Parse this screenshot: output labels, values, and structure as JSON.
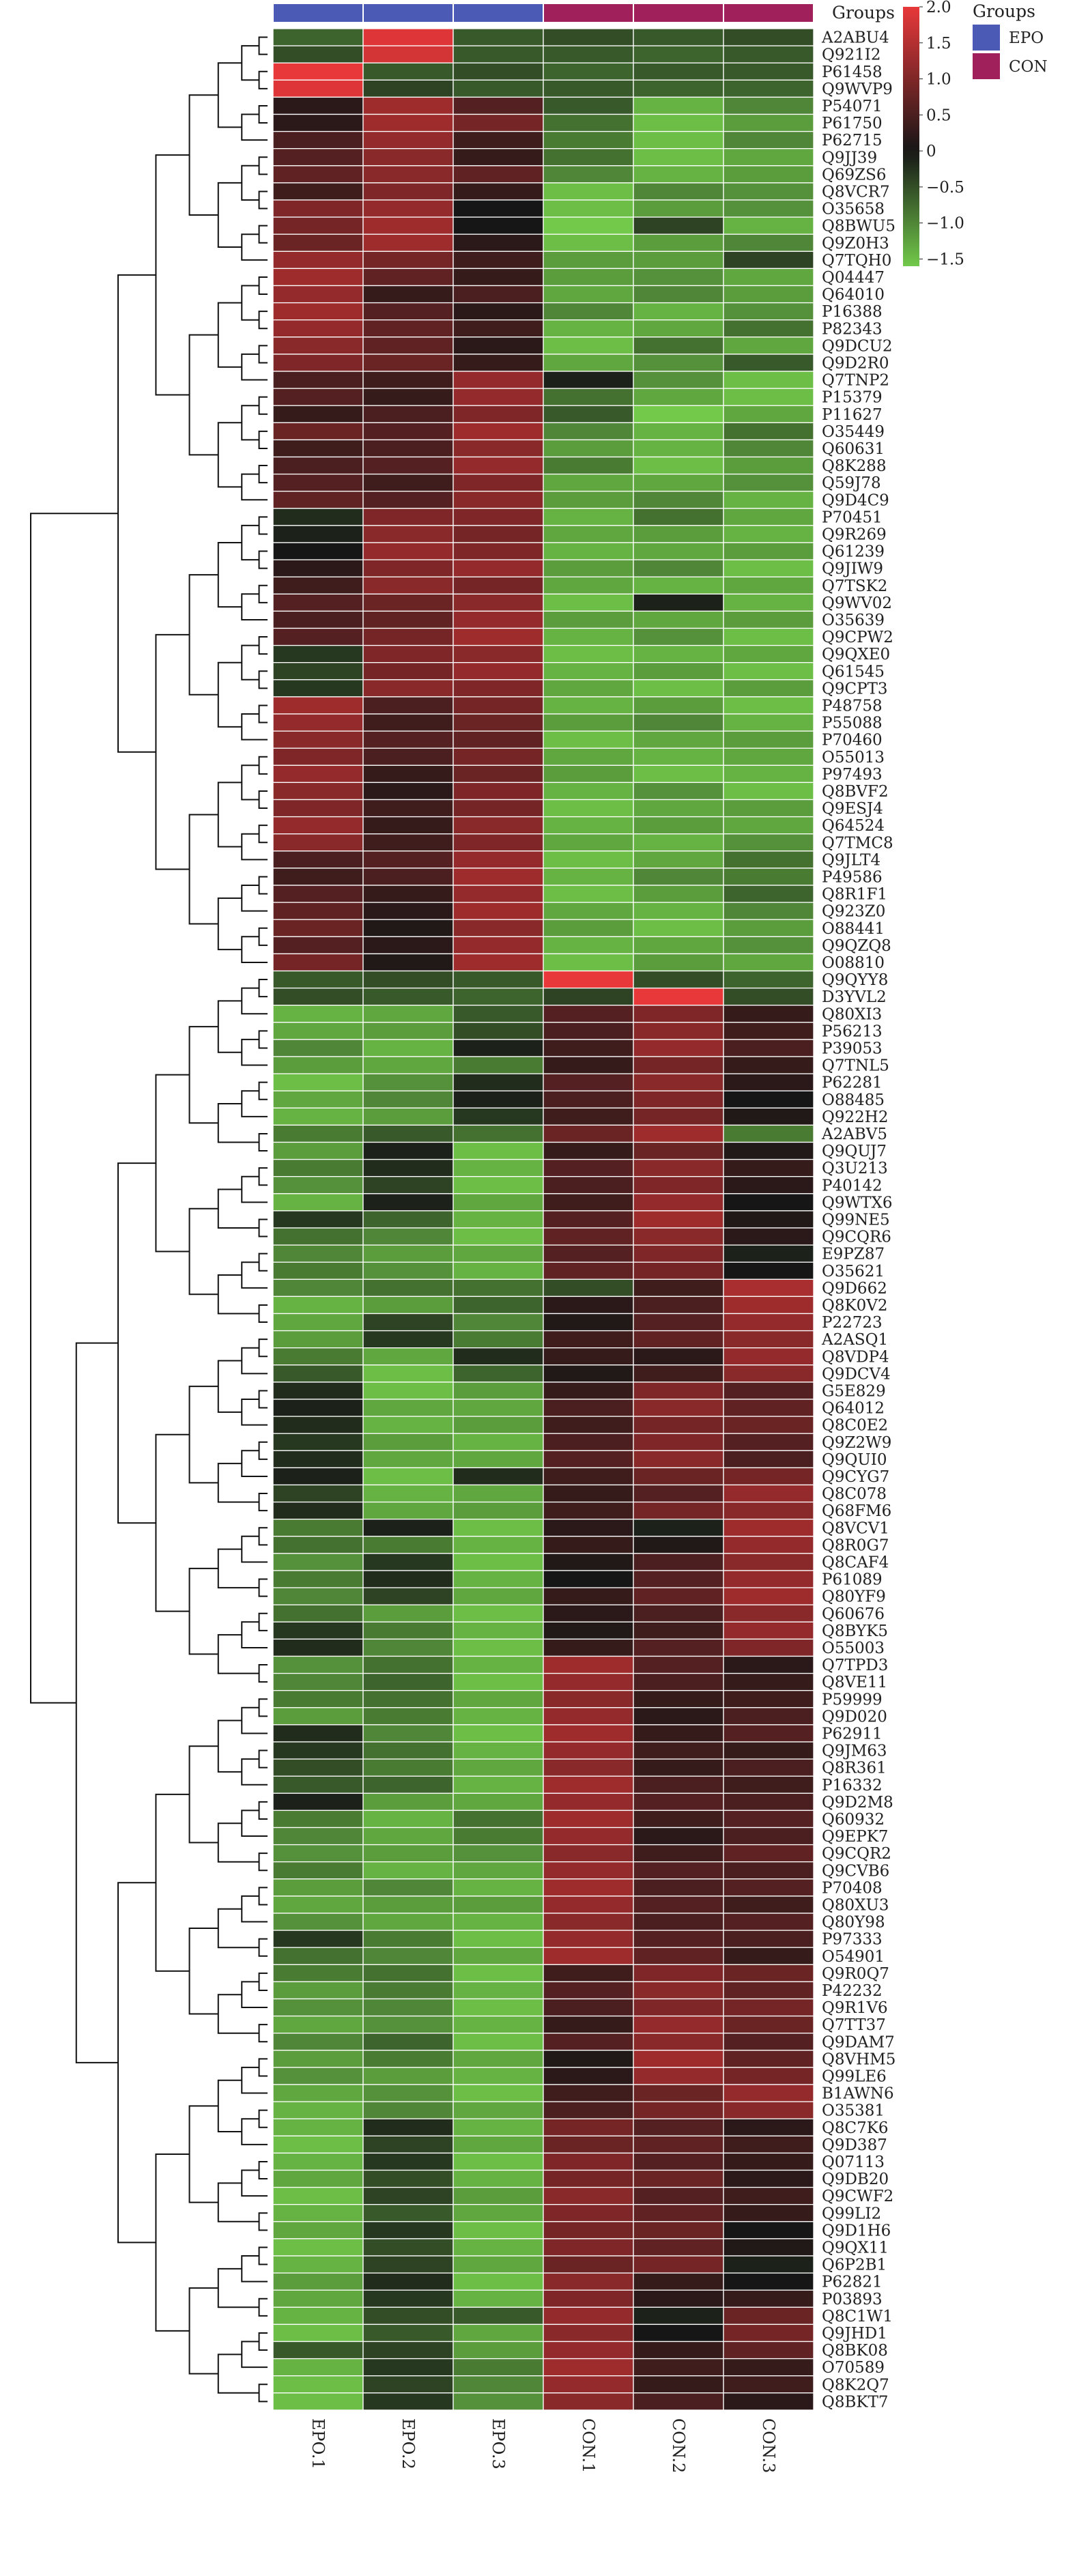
{
  "chart_data": {
    "type": "heatmap",
    "annotation_title": "Groups",
    "legend": {
      "title": "Groups",
      "items": [
        {
          "label": "EPO",
          "color": "#4a5ab5"
        },
        {
          "label": "CON",
          "color": "#a0205c"
        }
      ]
    },
    "colorbar": {
      "ticks": [
        "2.0",
        "1.5",
        "1.0",
        "0.5",
        "0",
        "−0.5",
        "−1.0",
        "−1.5"
      ],
      "tick_values": [
        2.0,
        1.5,
        1.0,
        0.5,
        0,
        -0.5,
        -1.0,
        -1.5
      ],
      "range": [
        -1.6,
        2.0
      ],
      "colors": {
        "high": "#e8383a",
        "mid": "#161616",
        "low": "#72c94a"
      }
    },
    "columns": [
      "EPO.1",
      "EPO.2",
      "EPO.3",
      "CON.1",
      "CON.2",
      "CON.3"
    ],
    "column_groups": [
      "EPO",
      "EPO",
      "EPO",
      "CON",
      "CON",
      "CON"
    ],
    "rows": [
      "A2ABU4",
      "Q921I2",
      "P61458",
      "Q9WVP9",
      "P54071",
      "P61750",
      "P62715",
      "Q9JJ39",
      "Q69ZS6",
      "Q8VCR7",
      "O35658",
      "Q8BWU5",
      "Q9Z0H3",
      "Q7TQH0",
      "Q04447",
      "Q64010",
      "P16388",
      "P82343",
      "Q9DCU2",
      "Q9D2R0",
      "Q7TNP2",
      "P15379",
      "P11627",
      "O35449",
      "Q60631",
      "Q8K288",
      "Q59J78",
      "Q9D4C9",
      "P70451",
      "Q9R269",
      "Q61239",
      "Q9JIW9",
      "Q7TSK2",
      "Q9WV02",
      "O35639",
      "Q9CPW2",
      "Q9QXE0",
      "Q61545",
      "Q9CPT3",
      "P48758",
      "P55088",
      "P70460",
      "O55013",
      "P97493",
      "Q8BVF2",
      "Q9ESJ4",
      "Q64524",
      "Q7TMC8",
      "Q9JLT4",
      "P49586",
      "Q8R1F1",
      "Q923Z0",
      "O88441",
      "Q9QZQ8",
      "O08810",
      "Q9QYY8",
      "D3YVL2",
      "Q80XI3",
      "P56213",
      "P39053",
      "Q7TNL5",
      "P62281",
      "O88485",
      "Q922H2",
      "A2ABV5",
      "Q9QUJ7",
      "Q3U213",
      "P40142",
      "Q9WTX6",
      "Q99NE5",
      "Q9CQR6",
      "E9PZ87",
      "O35621",
      "Q9D662",
      "Q8K0V2",
      "P22723",
      "A2ASQ1",
      "Q8VDP4",
      "Q9DCV4",
      "G5E829",
      "Q64012",
      "Q8C0E2",
      "Q9Z2W9",
      "Q9QUI0",
      "Q9CYG7",
      "Q8C078",
      "Q68FM6",
      "Q8VCV1",
      "Q8R0G7",
      "Q8CAF4",
      "P61089",
      "Q80YF9",
      "Q60676",
      "Q8BYK5",
      "O55003",
      "Q7TPD3",
      "Q8VE11",
      "P59999",
      "Q9D020",
      "P62911",
      "Q9JM63",
      "Q8R361",
      "P16332",
      "Q9D2M8",
      "Q60932",
      "Q9EPK7",
      "Q9CQR2",
      "Q9CVB6",
      "P70408",
      "Q80XU3",
      "Q80Y98",
      "P97333",
      "O54901",
      "Q9R0Q7",
      "P42232",
      "Q9R1V6",
      "Q7TT37",
      "Q9DAM7",
      "Q8VHM5",
      "Q99LE6",
      "B1AWN6",
      "O35381",
      "Q8C7K6",
      "Q9D387",
      "Q07113",
      "Q9DB20",
      "Q9CWF2",
      "Q99LI2",
      "Q9D1H6",
      "Q9QX11",
      "Q6P2B1",
      "P62821",
      "P03893",
      "Q8C1W1",
      "Q9JHD1",
      "Q8BK08",
      "O70589",
      "Q8K2Q7",
      "Q8BKT7"
    ],
    "values": [
      [
        -0.7,
        1.9,
        -0.6,
        -0.5,
        -0.6,
        -0.5
      ],
      [
        -0.5,
        1.8,
        -0.6,
        -0.6,
        -0.7,
        -0.6
      ],
      [
        2.0,
        -0.6,
        -0.5,
        -0.7,
        -0.6,
        -0.6
      ],
      [
        1.9,
        -0.4,
        -0.6,
        -0.6,
        -0.7,
        -0.7
      ],
      [
        0.2,
        1.3,
        0.6,
        -0.6,
        -1.4,
        -1.0
      ],
      [
        0.2,
        1.3,
        0.9,
        -0.8,
        -1.5,
        -1.2
      ],
      [
        0.5,
        1.2,
        0.4,
        -0.9,
        -1.5,
        -1.0
      ],
      [
        0.6,
        1.1,
        0.3,
        -0.8,
        -1.5,
        -1.3
      ],
      [
        0.7,
        1.1,
        0.7,
        -1.0,
        -1.4,
        -1.2
      ],
      [
        0.4,
        1.0,
        0.3,
        -1.5,
        -1.0,
        -1.1
      ],
      [
        1.0,
        1.2,
        0.0,
        -1.5,
        -1.2,
        -1.1
      ],
      [
        0.9,
        1.3,
        0.0,
        -1.6,
        -0.4,
        -1.4
      ],
      [
        0.8,
        1.3,
        0.2,
        -1.5,
        -1.2,
        -1.0
      ],
      [
        1.2,
        0.9,
        0.4,
        -1.2,
        -1.2,
        -0.4
      ],
      [
        1.3,
        0.7,
        0.3,
        -1.2,
        -1.1,
        -1.3
      ],
      [
        1.2,
        0.3,
        0.5,
        -1.3,
        -1.0,
        -1.2
      ],
      [
        1.3,
        0.6,
        0.2,
        -1.0,
        -1.4,
        -1.1
      ],
      [
        1.2,
        0.7,
        0.4,
        -1.4,
        -1.3,
        -0.8
      ],
      [
        1.1,
        0.7,
        0.2,
        -1.5,
        -0.8,
        -1.3
      ],
      [
        1.0,
        0.8,
        0.3,
        -1.3,
        -1.1,
        -0.6
      ],
      [
        0.5,
        0.4,
        1.2,
        -0.1,
        -1.1,
        -1.5
      ],
      [
        0.6,
        0.3,
        1.2,
        -0.8,
        -1.3,
        -1.5
      ],
      [
        0.3,
        0.5,
        1.0,
        -0.6,
        -1.6,
        -1.3
      ],
      [
        0.8,
        0.6,
        1.3,
        -1.0,
        -1.4,
        -0.8
      ],
      [
        0.4,
        0.5,
        1.1,
        -1.2,
        -1.4,
        -1.0
      ],
      [
        0.5,
        0.6,
        1.2,
        -0.9,
        -1.5,
        -1.2
      ],
      [
        0.6,
        0.4,
        1.0,
        -1.3,
        -1.3,
        -1.1
      ],
      [
        0.7,
        0.6,
        1.1,
        -1.2,
        -1.0,
        -1.4
      ],
      [
        -0.2,
        1.0,
        1.0,
        -1.4,
        -0.8,
        -1.3
      ],
      [
        -0.1,
        1.1,
        0.9,
        -1.3,
        -1.2,
        -1.4
      ],
      [
        0.0,
        1.2,
        1.0,
        -1.4,
        -1.3,
        -1.2
      ],
      [
        0.2,
        1.0,
        1.2,
        -1.2,
        -1.0,
        -1.5
      ],
      [
        0.4,
        1.1,
        0.9,
        -1.3,
        -1.4,
        -1.3
      ],
      [
        0.6,
        0.8,
        1.1,
        -1.5,
        -0.1,
        -1.4
      ],
      [
        0.5,
        0.7,
        1.2,
        -1.2,
        -1.3,
        -1.2
      ],
      [
        0.6,
        0.9,
        1.3,
        -1.4,
        -1.1,
        -1.5
      ],
      [
        -0.3,
        1.0,
        1.1,
        -1.5,
        -1.4,
        -1.3
      ],
      [
        -0.4,
        0.9,
        1.2,
        -1.4,
        -1.2,
        -1.5
      ],
      [
        -0.3,
        1.1,
        1.0,
        -1.3,
        -1.5,
        -1.2
      ],
      [
        1.3,
        0.5,
        0.9,
        -1.4,
        -1.2,
        -1.5
      ],
      [
        1.2,
        0.4,
        0.8,
        -1.2,
        -1.0,
        -1.4
      ],
      [
        1.1,
        0.6,
        0.7,
        -1.5,
        -1.3,
        -1.2
      ],
      [
        1.0,
        0.5,
        0.9,
        -1.3,
        -1.4,
        -1.3
      ],
      [
        1.2,
        0.3,
        0.8,
        -1.2,
        -1.5,
        -1.4
      ],
      [
        1.1,
        0.2,
        1.0,
        -1.4,
        -1.1,
        -1.5
      ],
      [
        1.0,
        0.4,
        0.9,
        -1.5,
        -1.3,
        -1.2
      ],
      [
        1.2,
        0.3,
        1.1,
        -1.4,
        -1.2,
        -1.3
      ],
      [
        1.1,
        0.4,
        1.0,
        -1.3,
        -1.4,
        -1.1
      ],
      [
        0.5,
        0.6,
        1.2,
        -1.5,
        -1.3,
        -0.8
      ],
      [
        0.4,
        0.5,
        1.3,
        -1.4,
        -1.0,
        -0.9
      ],
      [
        0.6,
        0.3,
        1.2,
        -1.5,
        -1.2,
        -0.7
      ],
      [
        0.7,
        0.2,
        1.3,
        -1.3,
        -1.4,
        -1.0
      ],
      [
        0.8,
        0.1,
        1.1,
        -1.2,
        -1.5,
        -1.2
      ],
      [
        0.6,
        0.2,
        1.2,
        -1.4,
        -1.3,
        -1.1
      ],
      [
        0.9,
        0.1,
        1.3,
        -1.5,
        -1.2,
        -1.3
      ],
      [
        -0.6,
        -0.5,
        -0.6,
        2.0,
        -0.5,
        -0.7
      ],
      [
        -0.5,
        -0.6,
        -0.7,
        -0.4,
        2.0,
        -0.5
      ],
      [
        -1.4,
        -1.3,
        -0.6,
        0.6,
        1.0,
        0.3
      ],
      [
        -1.3,
        -1.2,
        -0.5,
        0.5,
        1.1,
        0.4
      ],
      [
        -1.0,
        -1.4,
        -0.1,
        0.4,
        1.2,
        0.5
      ],
      [
        -1.2,
        -1.3,
        -0.9,
        0.3,
        0.9,
        0.3
      ],
      [
        -1.5,
        -1.1,
        -0.2,
        0.6,
        1.1,
        0.2
      ],
      [
        -1.3,
        -1.0,
        -0.1,
        0.5,
        1.0,
        0.0
      ],
      [
        -1.4,
        -1.2,
        -0.3,
        0.4,
        0.9,
        0.1
      ],
      [
        -0.9,
        -0.6,
        -0.8,
        0.8,
        1.3,
        -0.9
      ],
      [
        -1.2,
        -0.1,
        -1.5,
        0.3,
        0.8,
        0.1
      ],
      [
        -0.9,
        -0.2,
        -1.4,
        0.6,
        1.1,
        0.3
      ],
      [
        -1.1,
        -0.4,
        -1.5,
        0.5,
        1.0,
        0.2
      ],
      [
        -1.4,
        -0.1,
        -1.3,
        0.4,
        1.2,
        0.0
      ],
      [
        -0.3,
        -0.7,
        -1.4,
        0.6,
        1.3,
        0.1
      ],
      [
        -0.8,
        -1.0,
        -1.5,
        0.7,
        1.1,
        0.2
      ],
      [
        -1.0,
        -1.2,
        -1.3,
        0.6,
        1.0,
        -0.1
      ],
      [
        -0.9,
        -1.1,
        -1.4,
        0.7,
        0.9,
        0.0
      ],
      [
        -1.0,
        -0.8,
        -0.8,
        -0.5,
        0.4,
        1.4
      ],
      [
        -1.4,
        -1.2,
        -0.7,
        0.2,
        0.5,
        1.3
      ],
      [
        -1.3,
        -0.4,
        -1.0,
        0.1,
        0.6,
        1.2
      ],
      [
        -1.2,
        -0.3,
        -0.9,
        0.4,
        0.7,
        1.1
      ],
      [
        -0.9,
        -1.3,
        -0.2,
        0.3,
        0.2,
        1.2
      ],
      [
        -0.6,
        -1.5,
        -0.7,
        0.1,
        0.4,
        1.1
      ],
      [
        -0.2,
        -1.5,
        -1.2,
        0.3,
        1.0,
        0.6
      ],
      [
        -0.1,
        -1.3,
        -1.3,
        0.5,
        1.1,
        0.7
      ],
      [
        -0.2,
        -1.4,
        -1.2,
        0.4,
        0.9,
        0.8
      ],
      [
        -0.3,
        -1.2,
        -1.4,
        0.5,
        1.0,
        0.6
      ],
      [
        -0.2,
        -1.3,
        -1.3,
        0.6,
        1.1,
        0.5
      ],
      [
        -0.1,
        -1.5,
        -0.2,
        0.4,
        0.8,
        0.9
      ],
      [
        -0.4,
        -1.4,
        -1.3,
        0.3,
        0.6,
        1.2
      ],
      [
        -0.2,
        -1.3,
        -1.2,
        0.4,
        0.9,
        1.1
      ],
      [
        -0.9,
        -0.1,
        -1.5,
        0.2,
        -0.1,
        1.3
      ],
      [
        -0.8,
        -0.9,
        -1.4,
        0.3,
        0.1,
        1.2
      ],
      [
        -1.1,
        -0.3,
        -1.5,
        0.1,
        0.5,
        1.1
      ],
      [
        -0.9,
        -0.2,
        -1.4,
        0.0,
        0.6,
        1.2
      ],
      [
        -1.0,
        -0.4,
        -1.3,
        0.3,
        0.7,
        1.3
      ],
      [
        -0.8,
        -1.2,
        -1.5,
        0.2,
        0.5,
        1.1
      ],
      [
        -0.3,
        -0.9,
        -1.4,
        0.1,
        0.4,
        1.2
      ],
      [
        -0.2,
        -1.0,
        -1.5,
        0.3,
        0.6,
        1.0
      ],
      [
        -1.1,
        -0.8,
        -1.4,
        1.3,
        0.6,
        0.2
      ],
      [
        -1.0,
        -0.7,
        -1.5,
        1.2,
        0.5,
        0.3
      ],
      [
        -0.9,
        -0.8,
        -1.3,
        1.1,
        0.3,
        0.4
      ],
      [
        -1.2,
        -0.9,
        -1.4,
        1.2,
        0.2,
        0.5
      ],
      [
        -0.2,
        -1.0,
        -1.5,
        1.3,
        0.3,
        0.6
      ],
      [
        -0.3,
        -0.8,
        -1.4,
        1.2,
        0.4,
        0.3
      ],
      [
        -0.5,
        -0.9,
        -1.3,
        1.1,
        0.3,
        0.5
      ],
      [
        -0.6,
        -0.7,
        -1.4,
        1.3,
        0.5,
        0.4
      ],
      [
        -0.1,
        -1.2,
        -1.3,
        1.2,
        0.6,
        0.5
      ],
      [
        -0.9,
        -1.4,
        -0.8,
        1.3,
        0.4,
        0.6
      ],
      [
        -1.0,
        -1.3,
        -0.9,
        1.2,
        0.2,
        0.5
      ],
      [
        -1.1,
        -1.2,
        -1.1,
        1.1,
        0.4,
        0.7
      ],
      [
        -0.9,
        -1.4,
        -1.3,
        1.2,
        0.6,
        0.5
      ],
      [
        -1.2,
        -1.0,
        -1.4,
        1.3,
        0.5,
        0.6
      ],
      [
        -1.3,
        -1.2,
        -1.2,
        1.2,
        0.6,
        0.4
      ],
      [
        -1.1,
        -1.3,
        -1.4,
        1.1,
        0.5,
        0.6
      ],
      [
        -0.3,
        -0.9,
        -1.5,
        1.2,
        0.6,
        0.5
      ],
      [
        -0.8,
        -1.0,
        -1.3,
        1.3,
        0.7,
        0.3
      ],
      [
        -0.9,
        -0.8,
        -1.5,
        0.4,
        1.0,
        0.8
      ],
      [
        -1.2,
        -0.9,
        -1.4,
        0.6,
        1.1,
        0.7
      ],
      [
        -1.1,
        -1.0,
        -1.5,
        0.5,
        1.0,
        0.9
      ],
      [
        -1.3,
        -1.1,
        -1.4,
        0.3,
        1.2,
        0.8
      ],
      [
        -1.0,
        -0.7,
        -1.5,
        0.6,
        1.1,
        0.6
      ],
      [
        -1.2,
        -0.9,
        -1.3,
        0.1,
        1.3,
        0.7
      ],
      [
        -1.1,
        -1.2,
        -1.4,
        0.2,
        1.2,
        0.9
      ],
      [
        -1.3,
        -1.1,
        -1.5,
        0.4,
        0.8,
        1.2
      ],
      [
        -1.4,
        -1.0,
        -1.3,
        0.5,
        0.9,
        1.1
      ],
      [
        -1.4,
        -0.2,
        -1.4,
        0.9,
        0.6,
        0.2
      ],
      [
        -1.5,
        -0.4,
        -1.3,
        0.8,
        0.7,
        0.4
      ],
      [
        -1.4,
        -0.3,
        -1.5,
        1.0,
        0.6,
        0.3
      ],
      [
        -1.3,
        -0.5,
        -1.4,
        0.9,
        0.8,
        0.2
      ],
      [
        -1.5,
        -0.4,
        -1.2,
        1.1,
        0.6,
        0.4
      ],
      [
        -1.4,
        -0.6,
        -1.3,
        1.0,
        0.7,
        0.3
      ],
      [
        -1.3,
        -0.3,
        -1.5,
        0.9,
        0.8,
        0.0
      ],
      [
        -1.5,
        -0.5,
        -1.4,
        1.0,
        0.7,
        0.1
      ],
      [
        -1.4,
        -0.4,
        -1.3,
        0.8,
        0.9,
        -0.1
      ],
      [
        -1.2,
        -0.2,
        -1.5,
        1.1,
        0.3,
        0.0
      ],
      [
        -1.3,
        -0.3,
        -1.4,
        1.0,
        0.2,
        0.3
      ],
      [
        -1.4,
        -0.5,
        -0.6,
        1.2,
        -0.1,
        0.8
      ],
      [
        -1.5,
        -0.6,
        -1.3,
        1.1,
        0.0,
        0.9
      ],
      [
        -0.6,
        -0.4,
        -1.2,
        1.2,
        0.3,
        0.7
      ],
      [
        -1.4,
        -0.3,
        -0.9,
        1.3,
        0.4,
        0.3
      ],
      [
        -1.5,
        -0.4,
        -1.0,
        1.2,
        0.3,
        0.4
      ],
      [
        -1.5,
        -0.3,
        -1.1,
        1.1,
        0.5,
        0.2
      ]
    ]
  }
}
